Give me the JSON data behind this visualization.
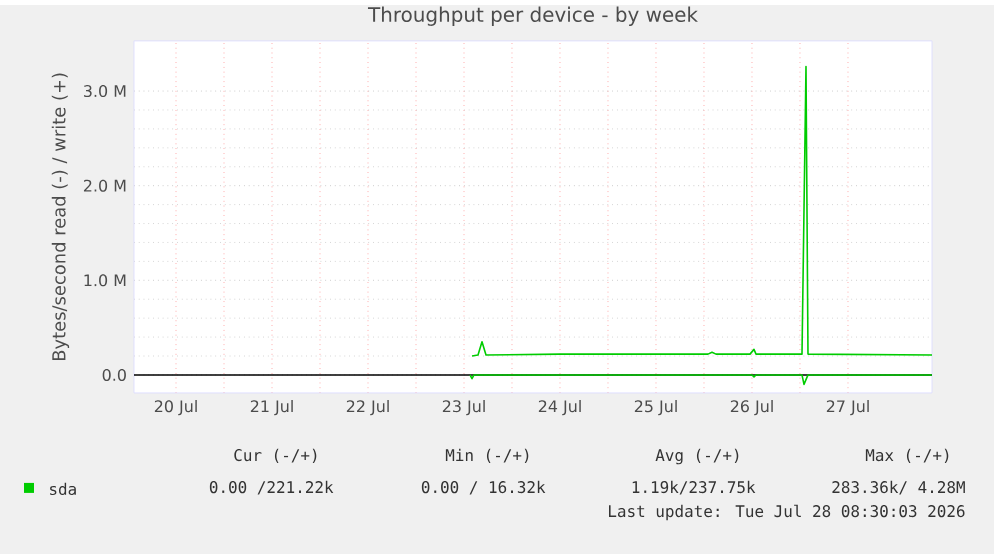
{
  "chart_data": {
    "type": "line",
    "title": "Throughput per device - by week",
    "ylabel": "Bytes/second read (-) / write (+)",
    "xlim": [
      "2026-07-20T01:30",
      "2026-07-28T09:00"
    ],
    "xticks": [
      {
        "value": "2026-07-20T12:00",
        "label": "20 Jul"
      },
      {
        "value": "2026-07-21T12:00",
        "label": "21 Jul"
      },
      {
        "value": "2026-07-22T12:00",
        "label": "22 Jul"
      },
      {
        "value": "2026-07-23T12:00",
        "label": "23 Jul"
      },
      {
        "value": "2026-07-24T12:00",
        "label": "24 Jul"
      },
      {
        "value": "2026-07-25T12:00",
        "label": "25 Jul"
      },
      {
        "value": "2026-07-26T12:00",
        "label": "26 Jul"
      },
      {
        "value": "2026-07-27T12:00",
        "label": "27 Jul"
      }
    ],
    "ylim": [
      -0.19,
      3.53
    ],
    "yticks": [
      {
        "value": 0,
        "label": "0.0"
      },
      {
        "value": 1,
        "label": "1.0 M"
      },
      {
        "value": 2,
        "label": "2.0 M"
      },
      {
        "value": 3,
        "label": "3.0 M"
      }
    ],
    "series": [
      {
        "name": "sda",
        "color": "#00cc00",
        "x": [
          "2026-07-23T14:00",
          "2026-07-23T15:30",
          "2026-07-23T16:30",
          "2026-07-23T17:30",
          "2026-07-24T12:00",
          "2026-07-25T12:00",
          "2026-07-26T01:00",
          "2026-07-26T02:00",
          "2026-07-26T03:00",
          "2026-07-26T11:30",
          "2026-07-26T12:30",
          "2026-07-26T13:00",
          "2026-07-27T00:30",
          "2026-07-27T01:30",
          "2026-07-27T02:00",
          "2026-07-28T09:00"
        ],
        "values": [
          0.2,
          0.21,
          0.35,
          0.21,
          0.22,
          0.22,
          0.22,
          0.24,
          0.22,
          0.22,
          0.27,
          0.22,
          0.22,
          3.26,
          0.22,
          0.21
        ]
      },
      {
        "color": "#00cc00",
        "x": [
          "2026-07-23T13:30",
          "2026-07-23T14:00",
          "2026-07-23T14:30",
          "2026-07-26T12:00",
          "2026-07-26T12:30",
          "2026-07-26T13:00",
          "2026-07-27T00:30",
          "2026-07-27T01:00",
          "2026-07-27T02:00",
          "2026-07-28T09:00"
        ],
        "values": [
          0,
          -0.04,
          0,
          0,
          -0.02,
          0,
          0,
          -0.1,
          0,
          0
        ]
      }
    ],
    "ref_lines": [
      {
        "axis": "y",
        "value": 0,
        "color": "#000000"
      }
    ],
    "grid": true,
    "legend": "bottom left",
    "annotations": [
      "Cur (-/+)",
      "Min (-/+)",
      "Avg (-/+)",
      "Max (-/+)",
      "0.00 /221.22k",
      "0.00 / 16.32k",
      "1.19k/237.75k",
      "283.36k/  4.28M",
      "Last update: Tue Jul 28 08:30:03 2026"
    ]
  }
}
